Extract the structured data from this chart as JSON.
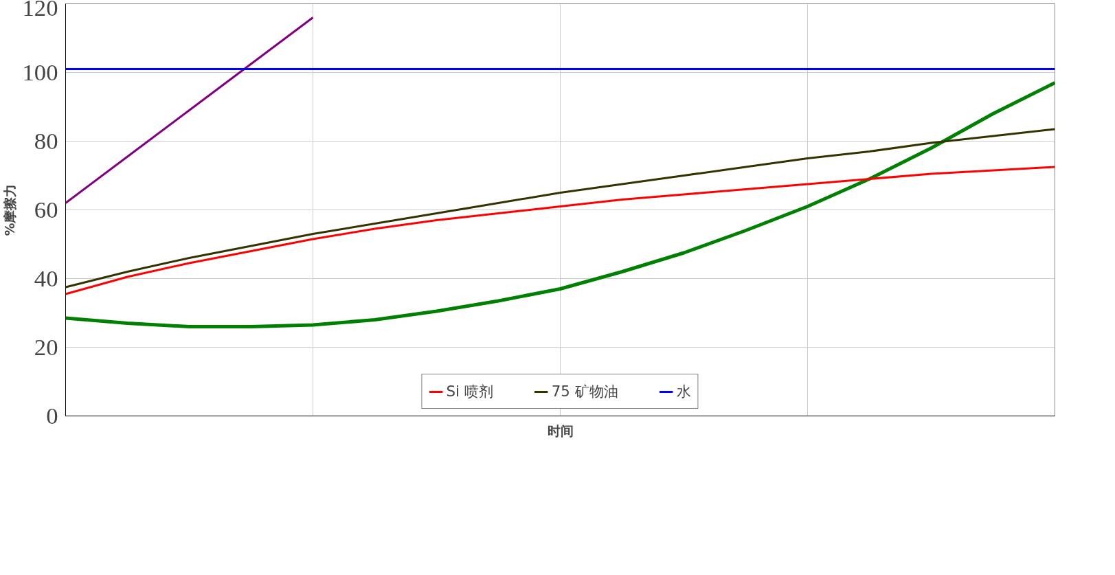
{
  "chart_data": {
    "type": "line",
    "xlabel": "时间",
    "ylabel": "%摩擦力",
    "categories": [
      null,
      null,
      null,
      null,
      null,
      null,
      null,
      null,
      null,
      null,
      null,
      null,
      null,
      null,
      null,
      null,
      null
    ],
    "series": [
      {
        "color": "#800080",
        "values": [
          62,
          75.5,
          89,
          102.5,
          116,
          null,
          null,
          null,
          null,
          null,
          null,
          null,
          null,
          null,
          null,
          null,
          null
        ]
      },
      {
        "color": "#008000",
        "values": [
          28.5,
          27,
          26,
          26,
          26.5,
          28,
          30.5,
          33.5,
          37,
          42,
          47.5,
          54,
          61,
          69,
          78,
          88,
          97
        ]
      },
      {
        "name": "Si 喷剂",
        "color": "#ff0000",
        "values": [
          35.5,
          40.5,
          44.5,
          48,
          51.5,
          54.5,
          57,
          59,
          61,
          63,
          64.5,
          66,
          67.5,
          69,
          70.5,
          71.5,
          72.5
        ]
      },
      {
        "name": "75 矿物油",
        "color": "#333300",
        "values": [
          37.5,
          42,
          46,
          49.5,
          53,
          56,
          59,
          62,
          65,
          67.5,
          70,
          72.5,
          75,
          77,
          79.5,
          81.5,
          83.5
        ]
      },
      {
        "name": "水",
        "color": "#0000ff",
        "values": [
          101,
          101,
          101,
          101,
          101,
          101,
          101,
          101,
          101,
          101,
          101,
          101,
          101,
          101,
          101,
          101,
          101
        ]
      }
    ],
    "ylim": [
      0,
      120
    ],
    "yticks": [
      0,
      20,
      40,
      60,
      80,
      100,
      120
    ],
    "grid": true,
    "legend": "bottom",
    "tick_labels": "y",
    "marker": "none",
    "line_style": "solid"
  }
}
